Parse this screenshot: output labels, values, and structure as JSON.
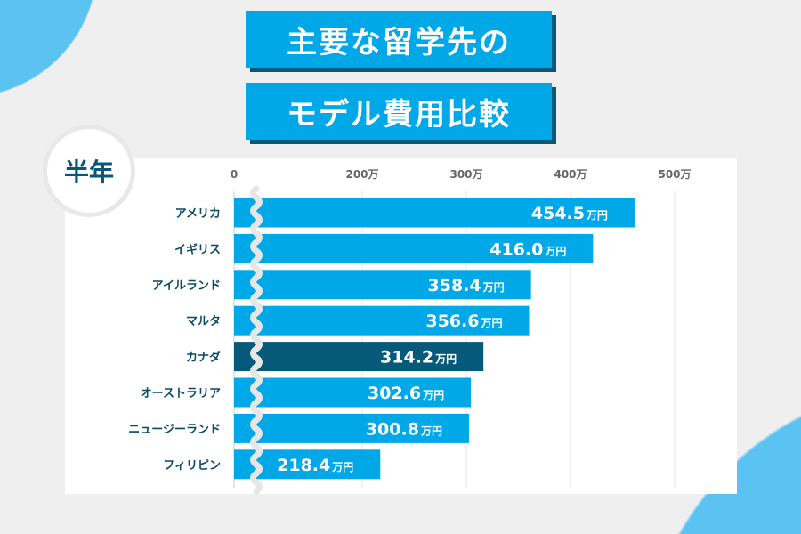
{
  "title_lines": [
    "主要な留学先の",
    "モデル費用比較"
  ],
  "period_badge": "半年",
  "colors": {
    "bar": "#00a8e8",
    "highlight": "#055a7a",
    "background": "#efefef",
    "accent": "#5bc3f2"
  },
  "chart_data": {
    "type": "bar",
    "orientation": "horizontal",
    "axis_break": true,
    "xticks": [
      "0",
      "200万",
      "300万",
      "400万",
      "500万"
    ],
    "xtick_values": [
      0,
      200,
      300,
      400,
      500
    ],
    "unit": "万円",
    "categories": [
      "アメリカ",
      "イギリス",
      "アイルランド",
      "マルタ",
      "カナダ",
      "オーストラリア",
      "ニュージーランド",
      "フィリピン"
    ],
    "values": [
      454.5,
      416.0,
      358.4,
      356.6,
      314.2,
      302.6,
      300.8,
      218.4
    ],
    "value_labels": [
      "454.5",
      "416.0",
      "358.4",
      "356.6",
      "314.2",
      "302.6",
      "300.8",
      "218.4"
    ],
    "highlight": "カナダ",
    "grid": true
  }
}
